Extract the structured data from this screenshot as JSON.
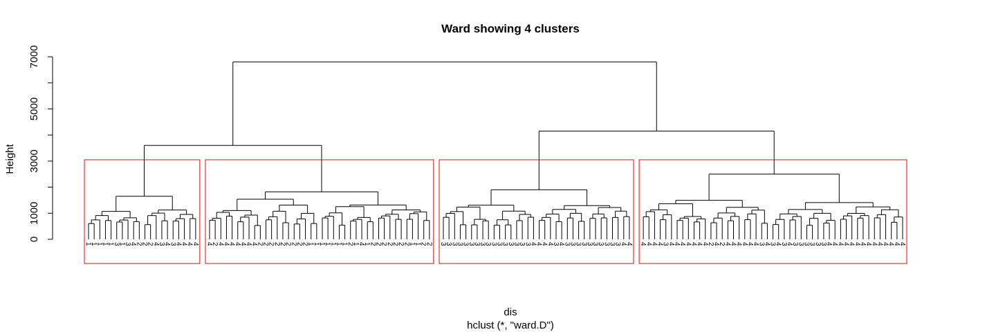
{
  "chart_data": {
    "type": "dendrogram",
    "title": "Ward showing 4 clusters",
    "xlabel": "dis",
    "sublabel": "hclust (*, \"ward.D\")",
    "ylabel": "Height",
    "ylim": [
      0,
      7000
    ],
    "yticks": [
      0,
      1000,
      2000,
      3000,
      4000,
      5000,
      6000,
      7000
    ],
    "ytick_labels": [
      "0",
      "1000",
      "3000",
      "5000",
      "7000"
    ],
    "cut_height": 3050,
    "cluster_box_color": "#ff0000",
    "line_color": "#000000",
    "merges": {
      "root": 6800,
      "left_branch": 3600,
      "right_branch": 4150,
      "cluster_1": 1650,
      "cluster_2": 1820,
      "cluster_3": 1900,
      "cluster_4": 2500
    },
    "clusters": [
      {
        "id": 1,
        "leaves": [
          "1",
          "1",
          "1",
          "1",
          "1",
          "3",
          "1",
          "3",
          "4",
          "2",
          "2",
          "2",
          "4",
          "3",
          "4",
          "3",
          "4",
          "4",
          "4",
          "4"
        ]
      },
      {
        "id": 2,
        "leaves": [
          "4",
          "2",
          "4",
          "4",
          "4",
          "4",
          "4",
          "4",
          "4",
          "2",
          "2",
          "2",
          "2",
          "2",
          "2",
          "2",
          "2",
          "2",
          "1",
          "1",
          "1",
          "1",
          "1",
          "1",
          "1",
          "2",
          "1",
          "4",
          "1",
          "2",
          "2",
          "2",
          "2",
          "2",
          "2",
          "2",
          "1",
          "1",
          "2",
          "2"
        ]
      },
      {
        "id": 3,
        "leaves": [
          "3",
          "3",
          "3",
          "3",
          "3",
          "3",
          "3",
          "3",
          "3",
          "3",
          "3",
          "3",
          "3",
          "3",
          "3",
          "3",
          "4",
          "4",
          "4",
          "4",
          "3",
          "4",
          "3",
          "3",
          "3",
          "3",
          "3",
          "3",
          "3",
          "3",
          "3",
          "3",
          "4",
          "4"
        ]
      },
      {
        "id": 4,
        "leaves": [
          "4",
          "4",
          "4",
          "4",
          "3",
          "4",
          "4",
          "4",
          "4",
          "4",
          "4",
          "4",
          "2",
          "4",
          "2",
          "4",
          "4",
          "4",
          "4",
          "4",
          "4",
          "3",
          "4",
          "3",
          "4",
          "3",
          "4",
          "3",
          "3",
          "3",
          "3",
          "3",
          "3",
          "4",
          "4",
          "4",
          "4",
          "4",
          "4",
          "4",
          "4",
          "4",
          "4",
          "4",
          "4",
          "4",
          "4"
        ]
      }
    ]
  }
}
